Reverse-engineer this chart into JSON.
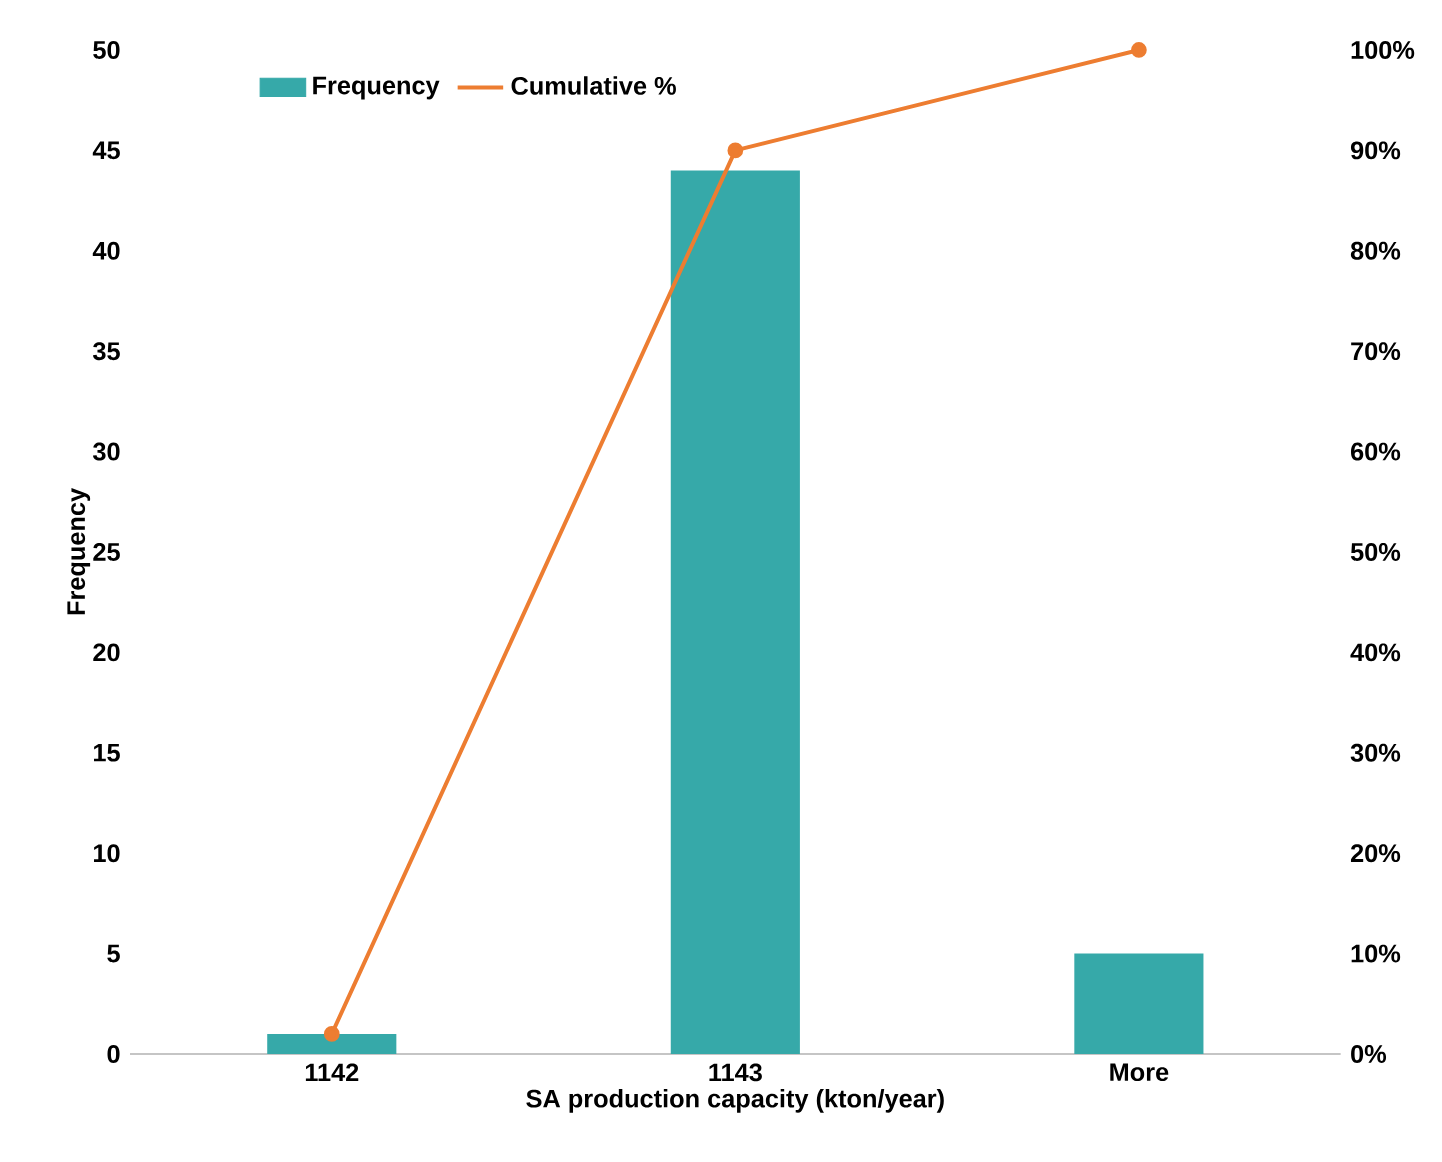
{
  "chart_data": {
    "type": "bar",
    "xlabel": "SA production capacity (kton/year)",
    "ylabel": "Frequency",
    "categories": [
      "1142",
      "1143",
      "More"
    ],
    "series": [
      {
        "name": "Frequency",
        "color": "#36a9a9",
        "values": [
          1,
          44,
          5
        ]
      },
      {
        "name": "Cumulative %",
        "type": "line",
        "axis": "y2",
        "color": "#ed7d31",
        "marker": "circle",
        "values": [
          2,
          90,
          100
        ]
      }
    ],
    "ylim": [
      0,
      50
    ],
    "yticks": [
      0,
      5,
      10,
      15,
      20,
      25,
      30,
      35,
      40,
      45,
      50
    ],
    "y2lim": [
      0,
      100
    ],
    "y2ticks": [
      {
        "value": 0,
        "label": "0%"
      },
      {
        "value": 10,
        "label": "10%"
      },
      {
        "value": 20,
        "label": "20%"
      },
      {
        "value": 30,
        "label": "30%"
      },
      {
        "value": 40,
        "label": "40%"
      },
      {
        "value": 50,
        "label": "50%"
      },
      {
        "value": 60,
        "label": "60%"
      },
      {
        "value": 70,
        "label": "70%"
      },
      {
        "value": 80,
        "label": "80%"
      },
      {
        "value": 90,
        "label": "90%"
      },
      {
        "value": 100,
        "label": "100%"
      }
    ],
    "legend": "top left",
    "grid": false
  }
}
